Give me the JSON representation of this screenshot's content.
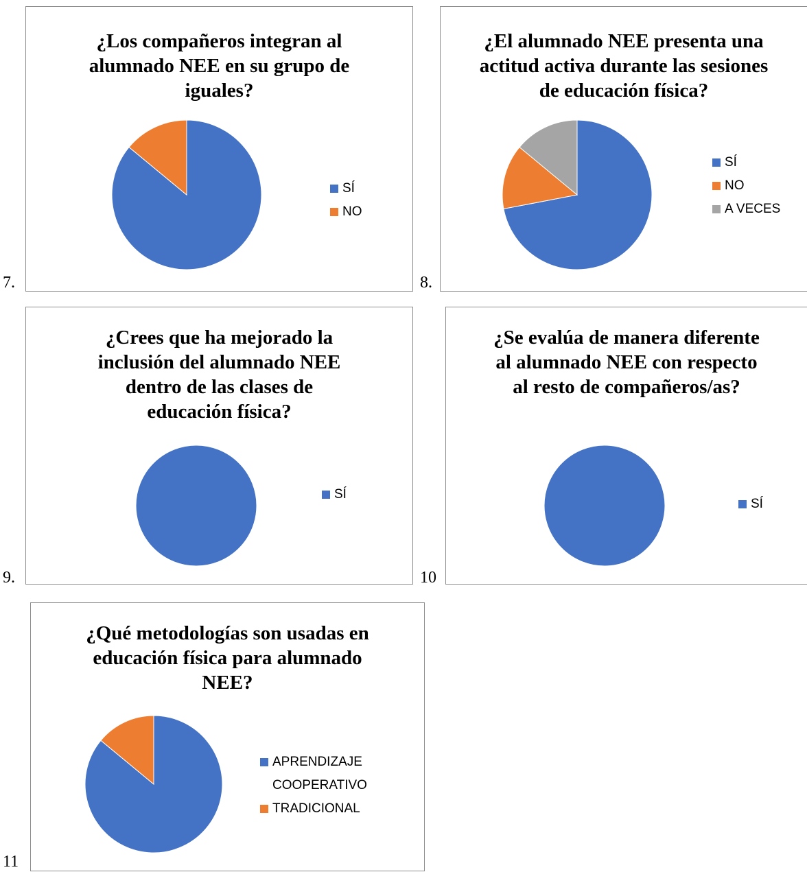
{
  "colors": {
    "blue": "#4472C4",
    "orange": "#ED7D31",
    "gray": "#A5A5A5"
  },
  "figure_numbers": [
    "7.",
    "8.",
    "9.",
    "10",
    "11"
  ],
  "chart_data": [
    {
      "type": "pie",
      "title": "¿Los compañeros integran al alumnado NEE en su grupo de iguales?",
      "categories": [
        "SÍ",
        "NO"
      ],
      "values": [
        86,
        14
      ],
      "colors": [
        "#4472C4",
        "#ED7D31"
      ],
      "legend": "right"
    },
    {
      "type": "pie",
      "title": "¿El alumnado NEE presenta una actitud activa durante las sesiones de educación física?",
      "categories": [
        "SÍ",
        "NO",
        "A VECES"
      ],
      "values": [
        72,
        14,
        14
      ],
      "colors": [
        "#4472C4",
        "#ED7D31",
        "#A5A5A5"
      ],
      "legend": "right"
    },
    {
      "type": "pie",
      "title": "¿Crees que ha mejorado la inclusión del alumnado NEE dentro de las clases de educación física?",
      "categories": [
        "SÍ"
      ],
      "values": [
        100
      ],
      "colors": [
        "#4472C4"
      ],
      "legend": "right"
    },
    {
      "type": "pie",
      "title": "¿Se evalúa de manera diferente al alumnado NEE con respecto al resto de compañeros/as?",
      "categories": [
        "SÍ"
      ],
      "values": [
        100
      ],
      "colors": [
        "#4472C4"
      ],
      "legend": "right"
    },
    {
      "type": "pie",
      "title": "¿Qué metodologías son usadas en educación física para alumnado NEE?",
      "categories": [
        "APRENDIZAJE\nCOOPERATIVO",
        "TRADICIONAL"
      ],
      "values": [
        86,
        14
      ],
      "colors": [
        "#4472C4",
        "#ED7D31"
      ],
      "legend": "right"
    }
  ]
}
